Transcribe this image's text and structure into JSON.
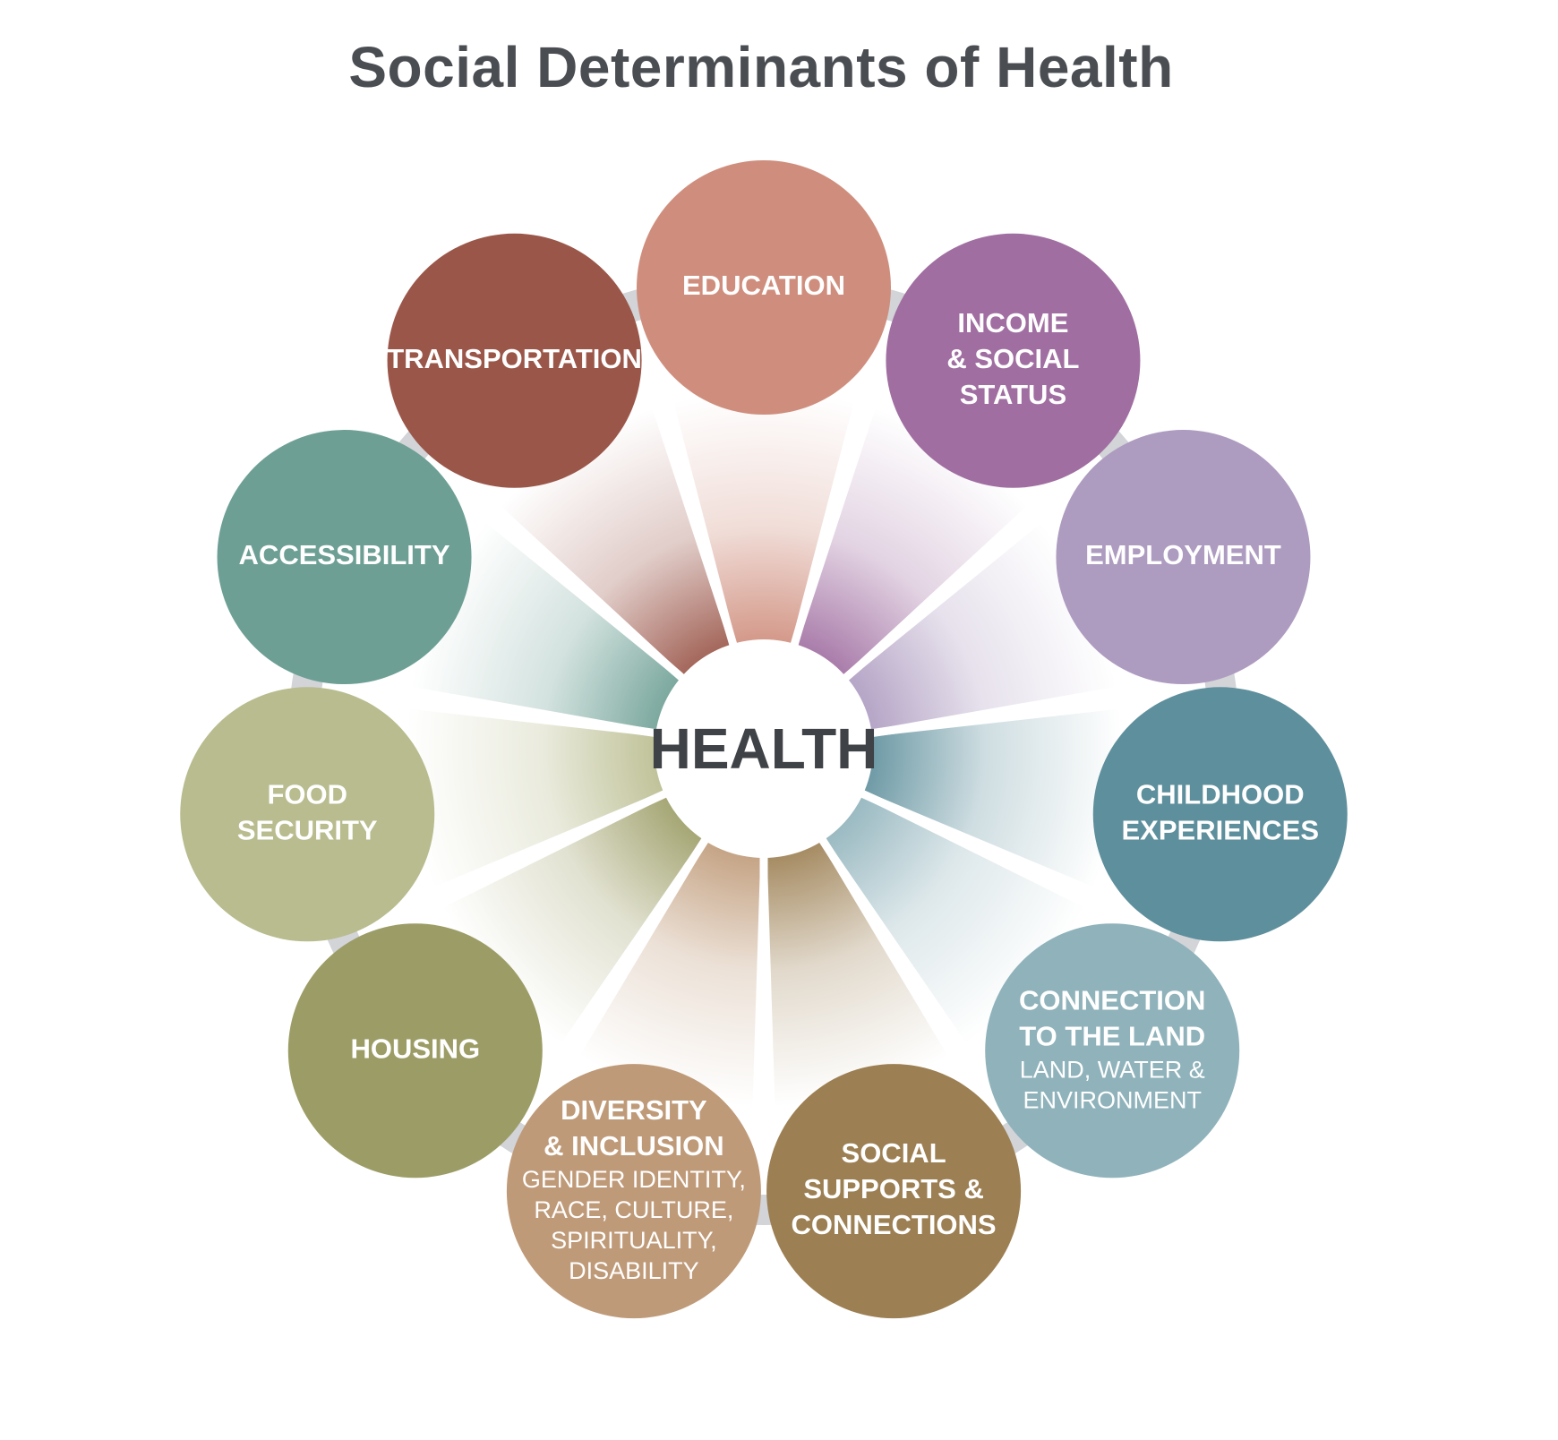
{
  "title": "Social Determinants of Health",
  "center": {
    "label": "HEALTH"
  },
  "nodes": [
    {
      "id": "education",
      "lines": [
        "EDUCATION"
      ],
      "sub": [],
      "color": "#cf8e7d"
    },
    {
      "id": "income",
      "lines": [
        "INCOME",
        "& SOCIAL",
        "STATUS"
      ],
      "sub": [],
      "color": "#a06ea1"
    },
    {
      "id": "employment",
      "lines": [
        "EMPLOYMENT"
      ],
      "sub": [],
      "color": "#ad9bc0"
    },
    {
      "id": "childhood",
      "lines": [
        "CHILDHOOD",
        "EXPERIENCES"
      ],
      "sub": [],
      "color": "#5e8f9c"
    },
    {
      "id": "land",
      "lines": [
        "CONNECTION",
        "TO THE LAND"
      ],
      "sub": [
        "LAND, WATER &",
        "ENVIRONMENT"
      ],
      "color": "#8fb2bb"
    },
    {
      "id": "social",
      "lines": [
        "SOCIAL",
        "SUPPORTS &",
        "CONNECTIONS"
      ],
      "sub": [],
      "color": "#9c7f52"
    },
    {
      "id": "diversity",
      "lines": [
        "DIVERSITY",
        "& INCLUSION"
      ],
      "sub": [
        "GENDER IDENTITY,",
        "RACE, CULTURE,",
        "SPIRITUALITY,",
        "DISABILITY"
      ],
      "color": "#bf9a78"
    },
    {
      "id": "housing",
      "lines": [
        "HOUSING"
      ],
      "sub": [],
      "color": "#9c9d66"
    },
    {
      "id": "food",
      "lines": [
        "FOOD",
        "SECURITY"
      ],
      "sub": [],
      "color": "#b9bc8e"
    },
    {
      "id": "accessibility",
      "lines": [
        "ACCESSIBILITY"
      ],
      "sub": [],
      "color": "#6d9f94"
    },
    {
      "id": "transportation",
      "lines": [
        "TRANSPORTATION"
      ],
      "sub": [],
      "color": "#9a5649"
    }
  ]
}
